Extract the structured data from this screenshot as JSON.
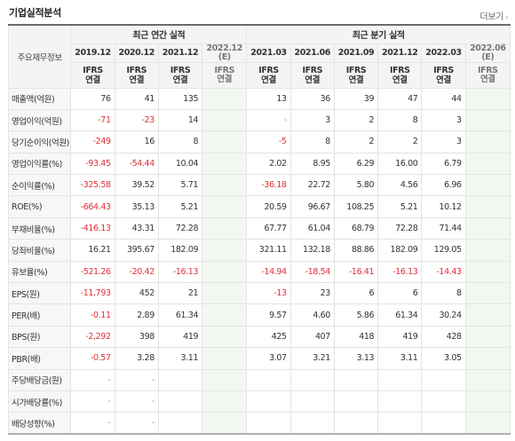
{
  "header": {
    "title": "기업실적분석",
    "more_label": "더보기"
  },
  "table": {
    "corner_label": "주요재무정보",
    "annual_group": "최근 연간 실적",
    "quarter_group": "최근 분기 실적",
    "periods": [
      "2019.12",
      "2020.12",
      "2021.12",
      "2022.12",
      "2021.03",
      "2021.06",
      "2021.09",
      "2021.12",
      "2022.03",
      "2022.06"
    ],
    "estimate_suffix": "(E)",
    "ifrs_top": "IFRS",
    "ifrs_bottom": "연결",
    "rows": [
      {
        "label": "매출액(억원)",
        "values": [
          "76",
          "41",
          "135",
          "",
          "13",
          "36",
          "39",
          "47",
          "44",
          ""
        ]
      },
      {
        "label": "영업이익(억원)",
        "values": [
          "-71",
          "-23",
          "14",
          "",
          "-",
          "3",
          "2",
          "8",
          "3",
          ""
        ]
      },
      {
        "label": "당기순이익(억원)",
        "values": [
          "-249",
          "16",
          "8",
          "",
          "-5",
          "8",
          "2",
          "2",
          "3",
          ""
        ]
      },
      {
        "label": "영업이익률(%)",
        "values": [
          "-93.45",
          "-54.44",
          "10.04",
          "",
          "2.02",
          "8.95",
          "6.29",
          "16.00",
          "6.79",
          ""
        ]
      },
      {
        "label": "순이익률(%)",
        "values": [
          "-325.58",
          "39.52",
          "5.71",
          "",
          "-36.18",
          "22.72",
          "5.80",
          "4.56",
          "6.96",
          ""
        ]
      },
      {
        "label": "ROE(%)",
        "values": [
          "-664.43",
          "35.13",
          "5.21",
          "",
          "20.59",
          "96.67",
          "108.25",
          "5.21",
          "10.12",
          ""
        ]
      },
      {
        "label": "부채비율(%)",
        "values": [
          "-416.13",
          "43.31",
          "72.28",
          "",
          "67.77",
          "61.04",
          "68.79",
          "72.28",
          "71.44",
          ""
        ]
      },
      {
        "label": "당좌비율(%)",
        "values": [
          "16.21",
          "395.67",
          "182.09",
          "",
          "321.11",
          "132.18",
          "88.86",
          "182.09",
          "129.05",
          ""
        ]
      },
      {
        "label": "유보율(%)",
        "values": [
          "-521.26",
          "-20.42",
          "-16.13",
          "",
          "-14.94",
          "-18.54",
          "-16.41",
          "-16.13",
          "-14.43",
          ""
        ]
      },
      {
        "label": "EPS(원)",
        "values": [
          "-11,793",
          "452",
          "21",
          "",
          "-13",
          "23",
          "6",
          "6",
          "8",
          ""
        ]
      },
      {
        "label": "PER(배)",
        "values": [
          "-0.11",
          "2.89",
          "61.34",
          "",
          "9.57",
          "4.60",
          "5.86",
          "61.34",
          "30.24",
          ""
        ]
      },
      {
        "label": "BPS(원)",
        "values": [
          "-2,292",
          "398",
          "419",
          "",
          "425",
          "407",
          "418",
          "419",
          "428",
          ""
        ]
      },
      {
        "label": "PBR(배)",
        "values": [
          "-0.57",
          "3.28",
          "3.11",
          "",
          "3.07",
          "3.21",
          "3.13",
          "3.11",
          "3.05",
          ""
        ]
      },
      {
        "label": "주당배당금(원)",
        "values": [
          "-",
          "-",
          "",
          "",
          "",
          "",
          "",
          "",
          "",
          ""
        ]
      },
      {
        "label": "시가배당률(%)",
        "values": [
          "-",
          "-",
          "",
          "",
          "",
          "",
          "",
          "",
          "",
          ""
        ]
      },
      {
        "label": "배당성향(%)",
        "values": [
          "-",
          "-",
          "",
          "",
          "",
          "",
          "",
          "",
          "",
          ""
        ]
      }
    ]
  },
  "colors": {
    "negative": "#e0303a",
    "ifrs": "#e0492a",
    "estimate_bg": "#f2f8f0"
  }
}
